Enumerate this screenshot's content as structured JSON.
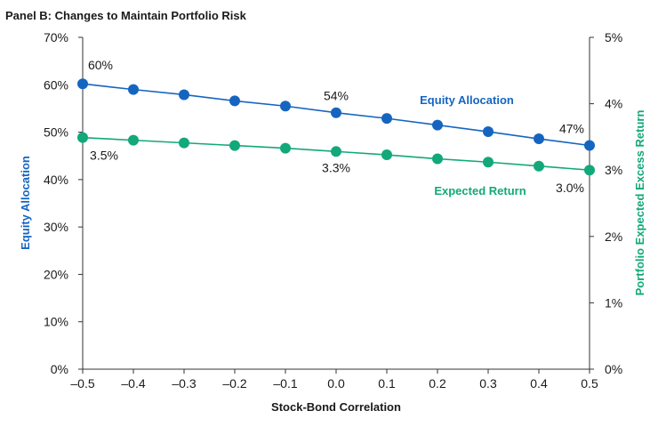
{
  "chart_data": {
    "type": "line",
    "title": "Panel B: Changes to Maintain Portfolio Risk",
    "xlabel": "Stock-Bond Correlation",
    "ylabel_left": "Equity Allocation",
    "ylabel_right": "Portfolio Expected Excess Return",
    "x": [
      -0.5,
      -0.4,
      -0.3,
      -0.2,
      -0.1,
      0.0,
      0.1,
      0.2,
      0.3,
      0.4,
      0.5
    ],
    "x_tick_labels": [
      "–0.5",
      "–0.4",
      "–0.3",
      "–0.2",
      "–0.1",
      "0.0",
      "0.1",
      "0.2",
      "0.3",
      "0.4",
      "0.5"
    ],
    "ylim_left": [
      0,
      70
    ],
    "y_left_ticks": [
      0,
      10,
      20,
      30,
      40,
      50,
      60,
      70
    ],
    "y_left_tick_labels": [
      "0%",
      "10%",
      "20%",
      "30%",
      "40%",
      "50%",
      "60%",
      "70%"
    ],
    "ylim_right": [
      0,
      5
    ],
    "y_right_ticks": [
      0,
      1,
      2,
      3,
      4,
      5
    ],
    "y_right_tick_labels": [
      "0%",
      "1%",
      "2%",
      "3%",
      "4%",
      "5%"
    ],
    "series": [
      {
        "name": "Equity Allocation",
        "axis": "left",
        "color": "#1565c0",
        "values": [
          60.2,
          59.0,
          57.9,
          56.6,
          55.5,
          54.1,
          52.9,
          51.5,
          50.1,
          48.6,
          47.2
        ],
        "labels": [
          {
            "index": 0,
            "text": "60%"
          },
          {
            "index": 5,
            "text": "54%"
          },
          {
            "index": 10,
            "text": "47%"
          }
        ]
      },
      {
        "name": "Expected Return",
        "axis": "right",
        "color": "#12a87a",
        "values": [
          3.49,
          3.45,
          3.41,
          3.37,
          3.33,
          3.28,
          3.23,
          3.17,
          3.12,
          3.06,
          3.0
        ],
        "labels": [
          {
            "index": 0,
            "text": "3.5%"
          },
          {
            "index": 5,
            "text": "3.3%"
          },
          {
            "index": 10,
            "text": "3.0%"
          }
        ]
      }
    ]
  }
}
